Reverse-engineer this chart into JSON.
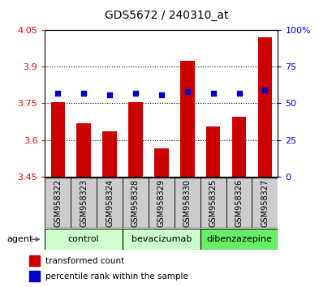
{
  "title": "GDS5672 / 240310_at",
  "samples": [
    "GSM958322",
    "GSM958323",
    "GSM958324",
    "GSM958328",
    "GSM958329",
    "GSM958330",
    "GSM958325",
    "GSM958326",
    "GSM958327"
  ],
  "bar_values": [
    3.755,
    3.67,
    3.635,
    3.755,
    3.565,
    3.925,
    3.655,
    3.695,
    4.02
  ],
  "percentile_values": [
    57,
    57,
    56,
    57,
    56,
    58,
    57,
    57,
    59
  ],
  "ymin": 3.45,
  "ymax": 4.05,
  "yticks": [
    3.45,
    3.6,
    3.75,
    3.9,
    4.05
  ],
  "ytick_labels": [
    "3.45",
    "3.6",
    "3.75",
    "3.9",
    "4.05"
  ],
  "right_yticks": [
    0,
    25,
    50,
    75,
    100
  ],
  "right_ytick_labels": [
    "0",
    "25",
    "50",
    "75",
    "100%"
  ],
  "groups": [
    {
      "label": "control",
      "start": 0,
      "end": 3,
      "color": "#ccffcc"
    },
    {
      "label": "bevacizumab",
      "start": 3,
      "end": 6,
      "color": "#ccffcc"
    },
    {
      "label": "dibenzazepine",
      "start": 6,
      "end": 9,
      "color": "#66ee66"
    }
  ],
  "bar_color": "#cc0000",
  "marker_color": "#0000cc",
  "grid_lines": [
    3.6,
    3.75,
    3.9
  ],
  "legend_bar_label": "transformed count",
  "legend_marker_label": "percentile rank within the sample",
  "agent_label": "agent",
  "sample_box_color": "#cccccc",
  "title_fontsize": 10,
  "axis_fontsize": 8,
  "label_fontsize": 7,
  "group_fontsize": 8
}
